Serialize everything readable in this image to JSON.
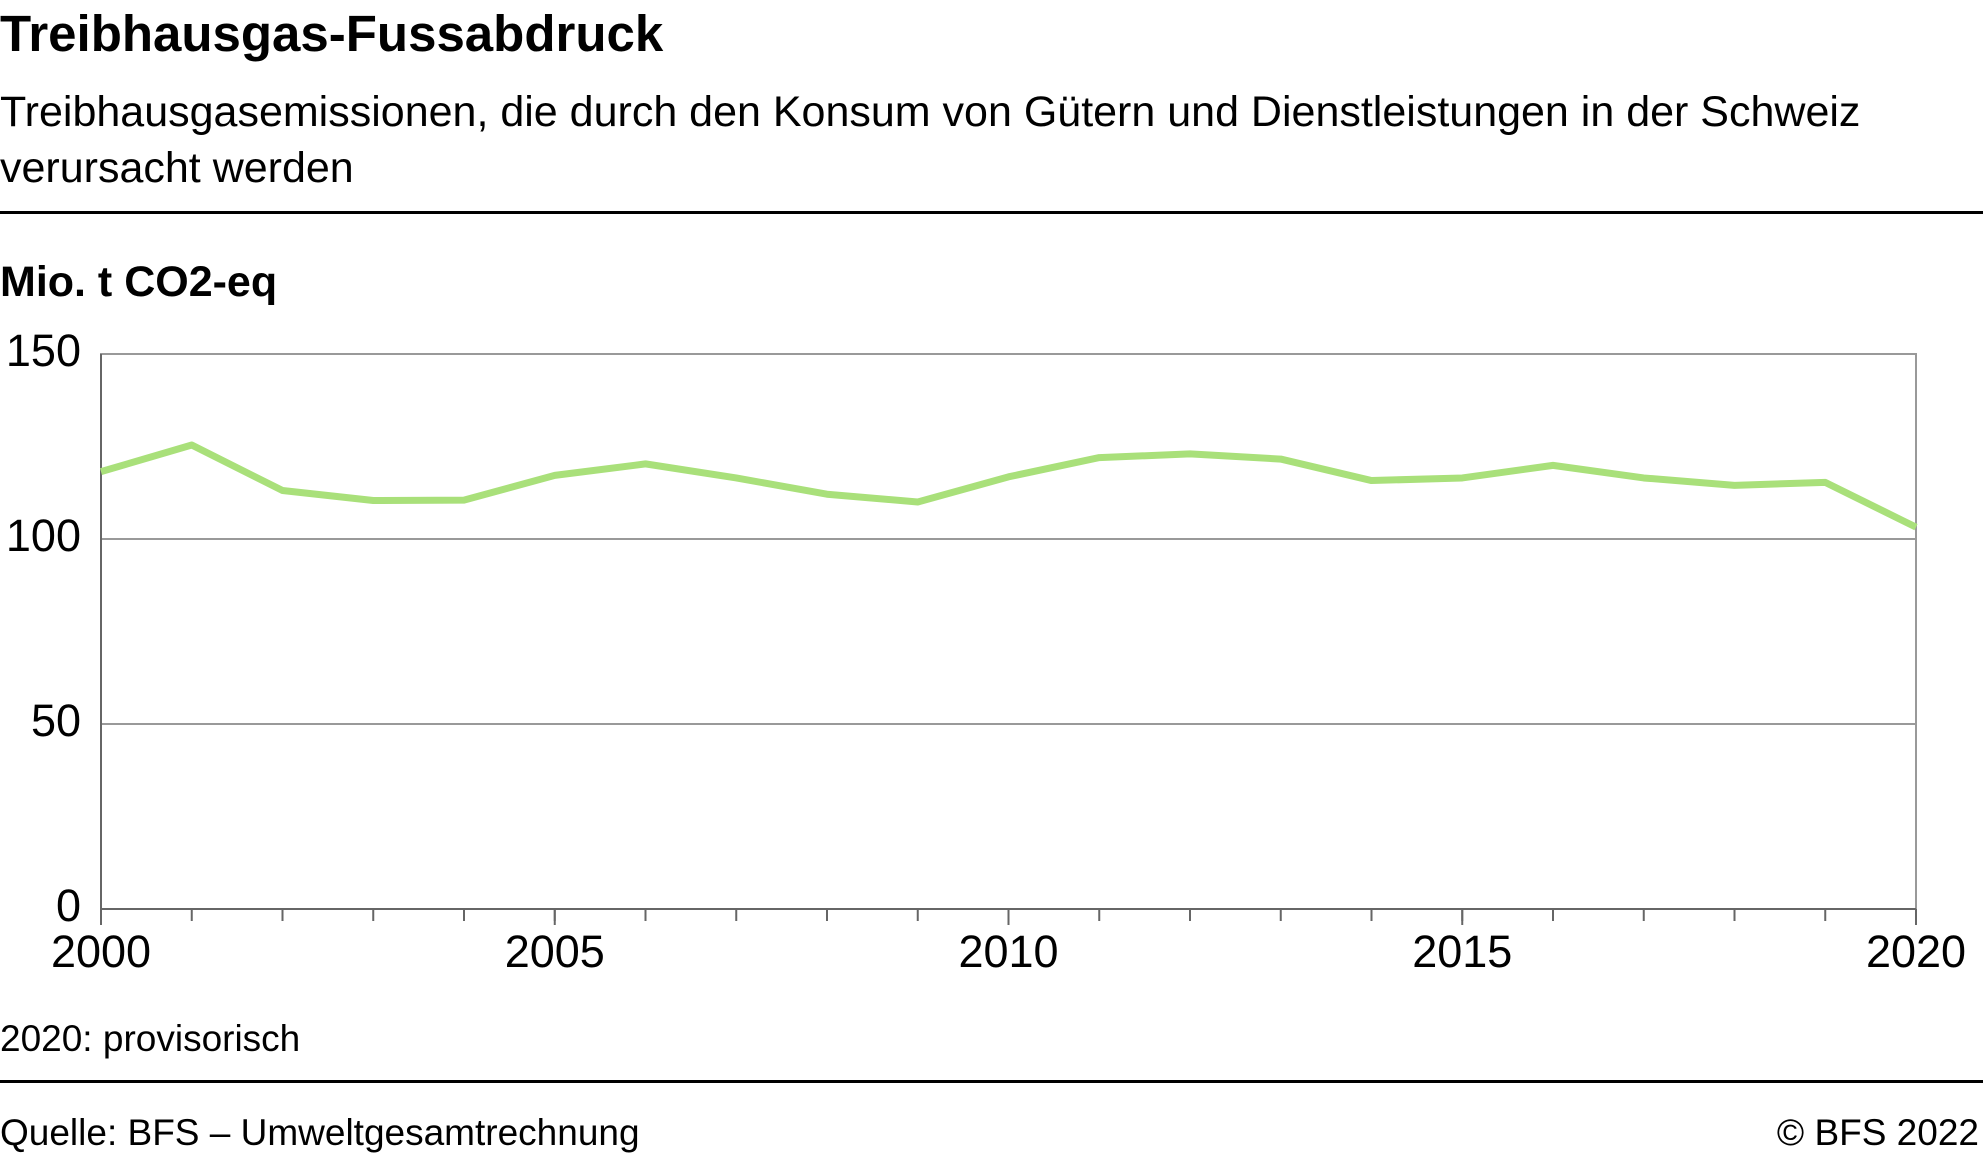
{
  "chart_data": {
    "type": "line",
    "title": "Treibhausgas-Fussabdruck",
    "subtitle": "Treibhausgasemissionen, die durch den Konsum von Gütern und Dienstleistungen in der Schweiz verursacht werden",
    "y_label": "Mio. t CO2-eq",
    "x": [
      2000,
      2001,
      2002,
      2003,
      2004,
      2005,
      2006,
      2007,
      2008,
      2009,
      2010,
      2011,
      2012,
      2013,
      2014,
      2015,
      2016,
      2017,
      2018,
      2019,
      2020
    ],
    "series": [
      {
        "color": "#a9e07a",
        "values": [
          118.2,
          125.4,
          113.1,
          110.4,
          110.5,
          117.2,
          120.3,
          116.5,
          112.1,
          110.0,
          116.8,
          122.0,
          123.0,
          121.6,
          115.8,
          116.5,
          119.9,
          116.5,
          114.5,
          115.3,
          103.2
        ]
      }
    ],
    "xlim": [
      2000,
      2020
    ],
    "xticks": [
      2000,
      2005,
      2010,
      2015,
      2020
    ],
    "ylim": [
      0,
      150
    ],
    "yticks": [
      0,
      50,
      100,
      150
    ],
    "grid": true,
    "note": "2020: provisorisch",
    "source": "Quelle: BFS – Umweltgesamtrechnung",
    "copyright": "© BFS 2022"
  }
}
